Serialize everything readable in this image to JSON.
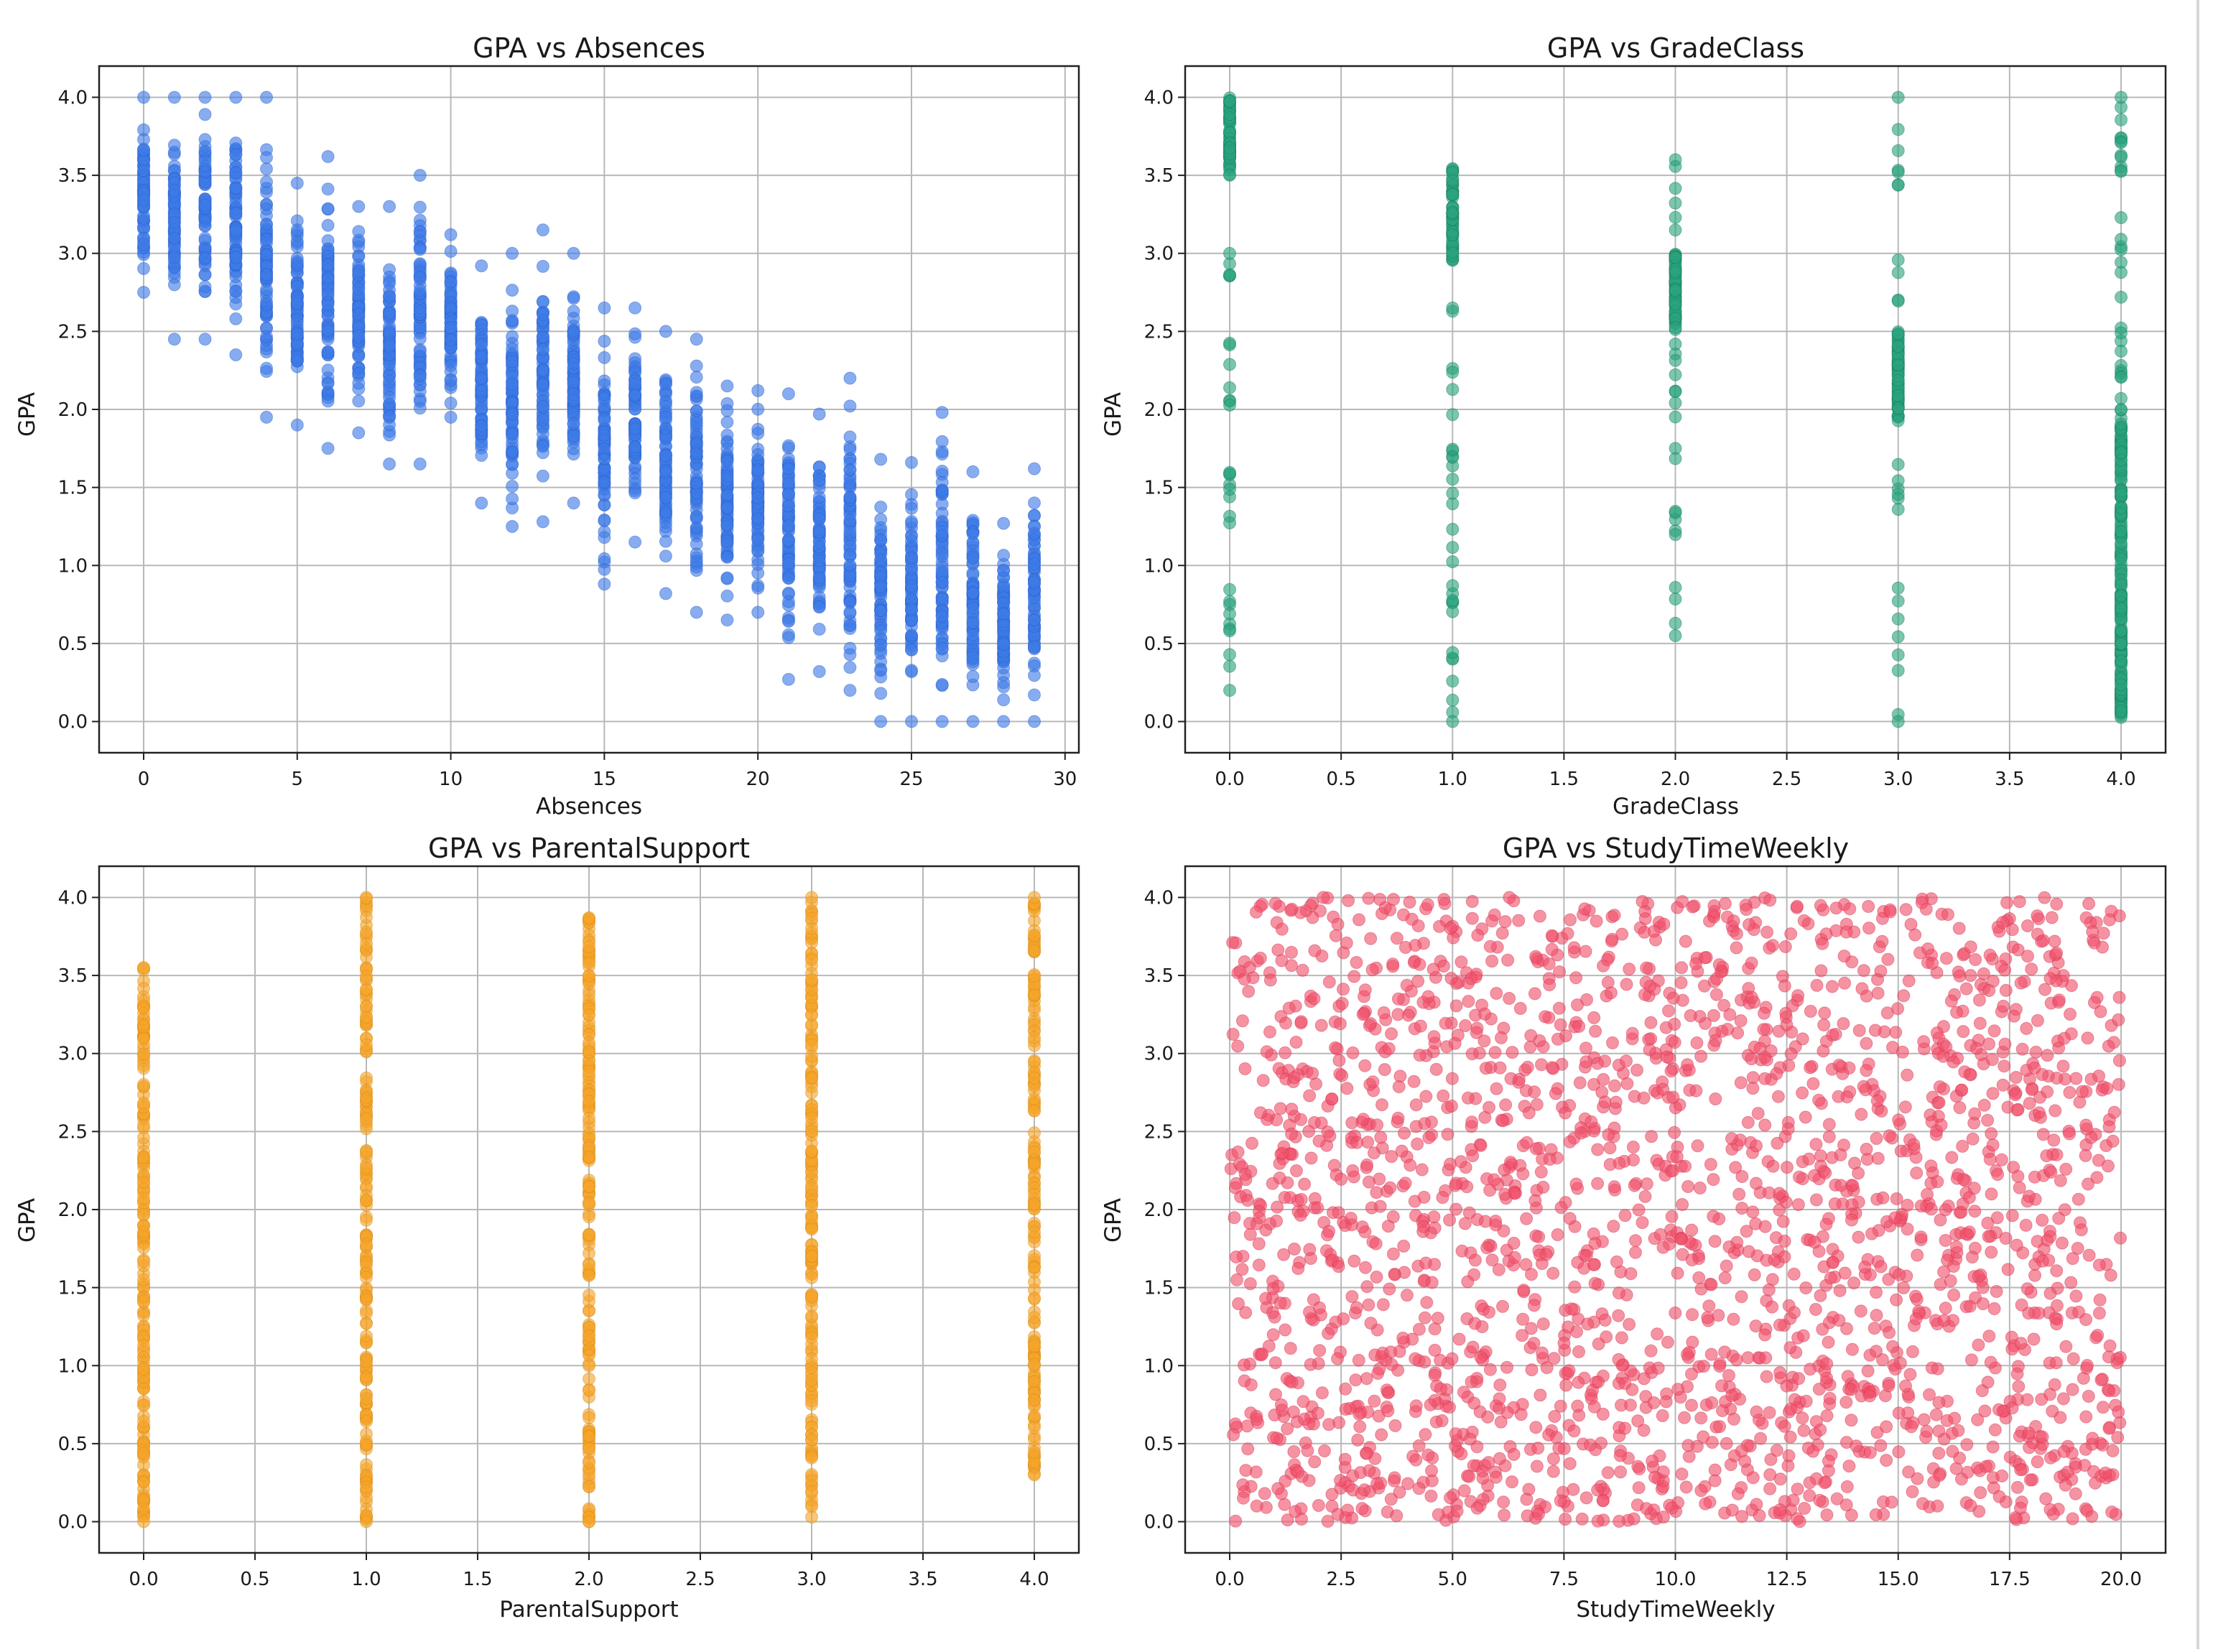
{
  "chart_data": [
    {
      "type": "scatter",
      "title": "GPA vs Absences",
      "xlabel": "Absences",
      "ylabel": "GPA",
      "xlim": [
        -1.45,
        30.45
      ],
      "ylim": [
        -0.2,
        4.2
      ],
      "xticks": [
        0,
        5,
        10,
        15,
        20,
        25,
        30
      ],
      "yticks": [
        0.0,
        0.5,
        1.0,
        1.5,
        2.0,
        2.5,
        3.0,
        3.5,
        4.0
      ],
      "xtick_decimals": 0,
      "grid": true,
      "color": "#3d7be6",
      "stroke": "#2a5fcf",
      "series_summary": {
        "x_values": "integers 0-29",
        "gpa_ranges": [
          [
            0,
            2.75,
            4.0
          ],
          [
            1,
            2.45,
            4.0
          ],
          [
            2,
            2.45,
            4.0
          ],
          [
            3,
            2.35,
            4.0
          ],
          [
            4,
            1.95,
            4.0
          ],
          [
            5,
            1.9,
            3.45
          ],
          [
            6,
            1.75,
            3.62
          ],
          [
            7,
            1.85,
            3.3
          ],
          [
            8,
            1.65,
            3.3
          ],
          [
            9,
            1.65,
            3.5
          ],
          [
            10,
            1.95,
            3.12
          ],
          [
            11,
            1.4,
            2.92
          ],
          [
            12,
            1.25,
            3.0
          ],
          [
            13,
            1.28,
            3.15
          ],
          [
            14,
            1.4,
            3.0
          ],
          [
            15,
            0.88,
            2.65
          ],
          [
            16,
            1.15,
            2.65
          ],
          [
            17,
            0.82,
            2.5
          ],
          [
            18,
            0.7,
            2.45
          ],
          [
            19,
            0.65,
            2.15
          ],
          [
            20,
            0.7,
            2.12
          ],
          [
            21,
            0.27,
            2.1
          ],
          [
            22,
            0.32,
            1.97
          ],
          [
            23,
            0.2,
            2.2
          ],
          [
            24,
            0.0,
            1.68
          ],
          [
            25,
            0.0,
            1.66
          ],
          [
            26,
            0.0,
            1.98
          ],
          [
            27,
            0.0,
            1.6
          ],
          [
            28,
            0.0,
            1.27
          ],
          [
            29,
            0.0,
            1.62
          ]
        ]
      }
    },
    {
      "type": "scatter",
      "title": "GPA vs GradeClass",
      "xlabel": "GradeClass",
      "ylabel": "GPA",
      "xlim": [
        -0.2,
        4.2
      ],
      "ylim": [
        -0.2,
        4.2
      ],
      "xticks": [
        0.0,
        0.5,
        1.0,
        1.5,
        2.0,
        2.5,
        3.0,
        3.5,
        4.0
      ],
      "yticks": [
        0.0,
        0.5,
        1.0,
        1.5,
        2.0,
        2.5,
        3.0,
        3.5,
        4.0
      ],
      "xtick_decimals": 1,
      "grid": true,
      "color": "#2aa37e",
      "stroke": "#15795a",
      "series_summary": {
        "x_values": [
          0,
          1,
          2,
          3,
          4
        ],
        "dense_bands": [
          [
            0,
            3.5,
            4.0
          ],
          [
            1,
            2.95,
            3.55
          ],
          [
            2,
            2.5,
            3.0
          ],
          [
            3,
            1.95,
            2.5
          ],
          [
            4,
            0.0,
            2.0
          ]
        ],
        "sparse_ranges": [
          [
            0,
            0.2,
            3.0
          ],
          [
            1,
            0.0,
            2.65
          ],
          [
            2,
            0.55,
            3.6
          ],
          [
            3,
            0.0,
            4.0
          ],
          [
            4,
            2.0,
            4.0
          ]
        ]
      }
    },
    {
      "type": "scatter",
      "title": "GPA vs ParentalSupport",
      "xlabel": "ParentalSupport",
      "ylabel": "GPA",
      "xlim": [
        -0.2,
        4.2
      ],
      "ylim": [
        -0.2,
        4.2
      ],
      "xticks": [
        0.0,
        0.5,
        1.0,
        1.5,
        2.0,
        2.5,
        3.0,
        3.5,
        4.0
      ],
      "yticks": [
        0.0,
        0.5,
        1.0,
        1.5,
        2.0,
        2.5,
        3.0,
        3.5,
        4.0
      ],
      "xtick_decimals": 1,
      "grid": true,
      "color": "#f5a52a",
      "stroke": "#d88a12",
      "series_summary": {
        "x_values": [
          0,
          1,
          2,
          3,
          4
        ],
        "gpa_ranges": [
          [
            0,
            0.0,
            3.55
          ],
          [
            1,
            0.0,
            4.0
          ],
          [
            2,
            0.0,
            3.87
          ],
          [
            3,
            0.03,
            4.0
          ],
          [
            4,
            0.3,
            4.0
          ]
        ]
      }
    },
    {
      "type": "scatter",
      "title": "GPA vs StudyTimeWeekly",
      "xlabel": "StudyTimeWeekly",
      "ylabel": "GPA",
      "xlim": [
        -1.0,
        21.0
      ],
      "ylim": [
        -0.2,
        4.2
      ],
      "xticks": [
        0.0,
        2.5,
        5.0,
        7.5,
        10.0,
        12.5,
        15.0,
        17.5,
        20.0
      ],
      "yticks": [
        0.0,
        0.5,
        1.0,
        1.5,
        2.0,
        2.5,
        3.0,
        3.5,
        4.0
      ],
      "xtick_decimals": 1,
      "grid": true,
      "color": "#f0506a",
      "stroke": "#d2304d",
      "series_summary": {
        "x_range": [
          0.0,
          20.0
        ],
        "gpa_range": [
          0.0,
          4.0
        ],
        "distribution": "approximately uniform, no visible correlation",
        "approx_points": 2300
      }
    }
  ]
}
